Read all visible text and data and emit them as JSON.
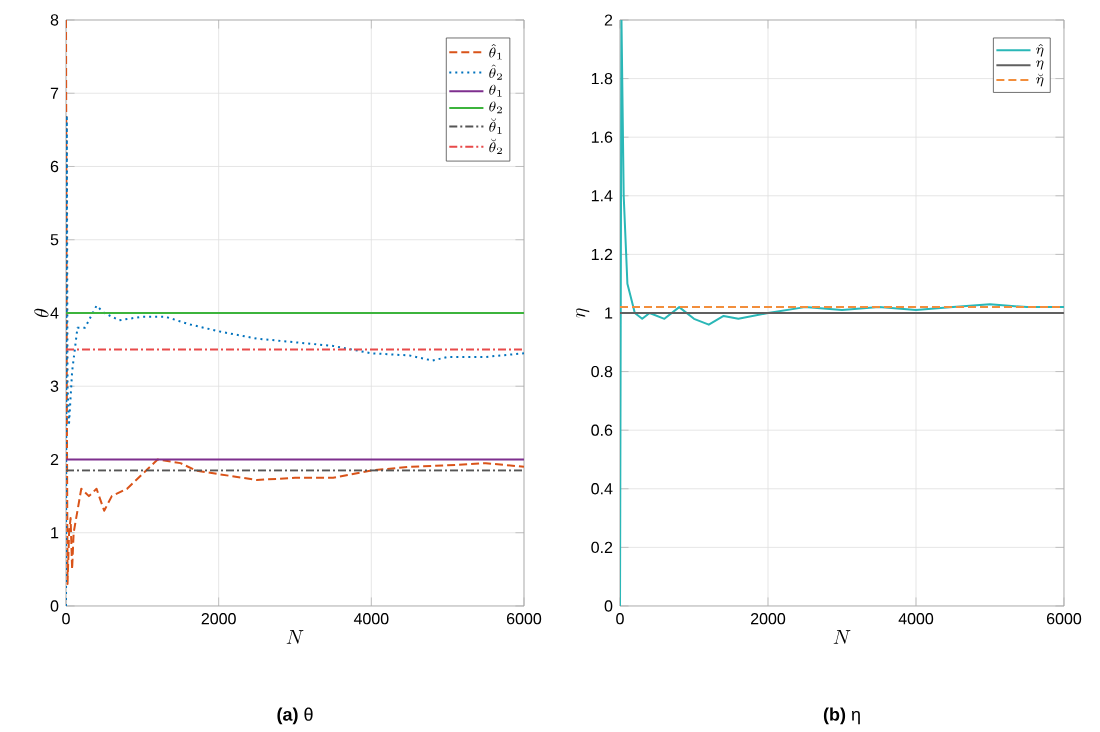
{
  "chart_data": [
    {
      "type": "line",
      "xlabel": "N",
      "ylabel": "\\theta",
      "xlim": [
        0,
        6000
      ],
      "ylim": [
        0,
        8
      ],
      "xticks": [
        0,
        2000,
        4000,
        6000
      ],
      "yticks": [
        0,
        1,
        2,
        3,
        4,
        5,
        6,
        7,
        8
      ],
      "grid": true,
      "legend": "top right",
      "annotations": [
        "**(a)** θ"
      ],
      "series": [
        {
          "name": "\\hat{\\theta}_1",
          "color": "#d95319",
          "line_style": "dashed",
          "x": [
            0,
            10,
            20,
            40,
            60,
            80,
            100,
            150,
            200,
            300,
            400,
            500,
            600,
            800,
            1000,
            1200,
            1500,
            1700,
            2000,
            2500,
            3000,
            3500,
            4000,
            4500,
            5000,
            5500,
            6000
          ],
          "values": [
            8,
            3,
            0.3,
            1.0,
            1.2,
            0.5,
            1.0,
            1.3,
            1.6,
            1.5,
            1.6,
            1.3,
            1.5,
            1.6,
            1.8,
            2.0,
            1.95,
            1.85,
            1.8,
            1.72,
            1.75,
            1.75,
            1.85,
            1.9,
            1.92,
            1.95,
            1.9
          ]
        },
        {
          "name": "\\hat{\\theta}_2",
          "color": "#0072bd",
          "line_style": "dotted",
          "x": [
            0,
            10,
            20,
            40,
            80,
            150,
            250,
            400,
            500,
            700,
            1000,
            1300,
            1600,
            2000,
            2500,
            3000,
            3500,
            4000,
            4500,
            4800,
            5000,
            5500,
            6000
          ],
          "values": [
            0,
            6.7,
            3,
            2.5,
            3.2,
            3.8,
            3.8,
            4.1,
            4.0,
            3.9,
            3.95,
            3.95,
            3.85,
            3.75,
            3.65,
            3.6,
            3.55,
            3.45,
            3.42,
            3.35,
            3.4,
            3.4,
            3.45
          ]
        },
        {
          "name": "\\theta_1",
          "color": "#7e2f8e",
          "line_style": "solid",
          "x": [
            0,
            6000
          ],
          "values": [
            2,
            2
          ]
        },
        {
          "name": "\\theta_2",
          "color": "#3cb43c",
          "line_style": "solid",
          "x": [
            0,
            6000
          ],
          "values": [
            4,
            4
          ]
        },
        {
          "name": "\\breve{\\theta}_1",
          "color": "#555555",
          "line_style": "dashdot",
          "x": [
            0,
            6000
          ],
          "values": [
            1.85,
            1.85
          ]
        },
        {
          "name": "\\breve{\\theta}_2",
          "color": "#e84a4a",
          "line_style": "dashdot",
          "x": [
            0,
            6000
          ],
          "values": [
            3.5,
            3.5
          ]
        }
      ]
    },
    {
      "type": "line",
      "xlabel": "N",
      "ylabel": "\\eta",
      "xlim": [
        0,
        6000
      ],
      "ylim": [
        0,
        2
      ],
      "xticks": [
        0,
        2000,
        4000,
        6000
      ],
      "yticks": [
        0,
        0.2,
        0.4,
        0.6,
        0.8,
        1,
        1.2,
        1.4,
        1.6,
        1.8,
        2
      ],
      "grid": true,
      "legend": "top right",
      "annotations": [
        "**(b)** η"
      ],
      "series": [
        {
          "name": "\\hat{\\eta}",
          "color": "#2ab7b7",
          "line_style": "solid",
          "x": [
            0,
            20,
            50,
            100,
            150,
            200,
            300,
            400,
            600,
            800,
            1000,
            1200,
            1400,
            1600,
            2000,
            2500,
            3000,
            3500,
            4000,
            4500,
            5000,
            5500,
            6000
          ],
          "values": [
            0,
            2,
            1.4,
            1.1,
            1.05,
            1.0,
            0.98,
            1.0,
            0.98,
            1.02,
            0.98,
            0.96,
            0.99,
            0.98,
            1.0,
            1.02,
            1.01,
            1.02,
            1.01,
            1.02,
            1.03,
            1.02,
            1.02
          ]
        },
        {
          "name": "\\eta",
          "color": "#606060",
          "line_style": "solid",
          "x": [
            0,
            6000
          ],
          "values": [
            1,
            1
          ]
        },
        {
          "name": "\\breve{\\eta}",
          "color": "#f28e3c",
          "line_style": "dashed",
          "x": [
            0,
            6000
          ],
          "values": [
            1.02,
            1.02
          ]
        }
      ]
    }
  ]
}
